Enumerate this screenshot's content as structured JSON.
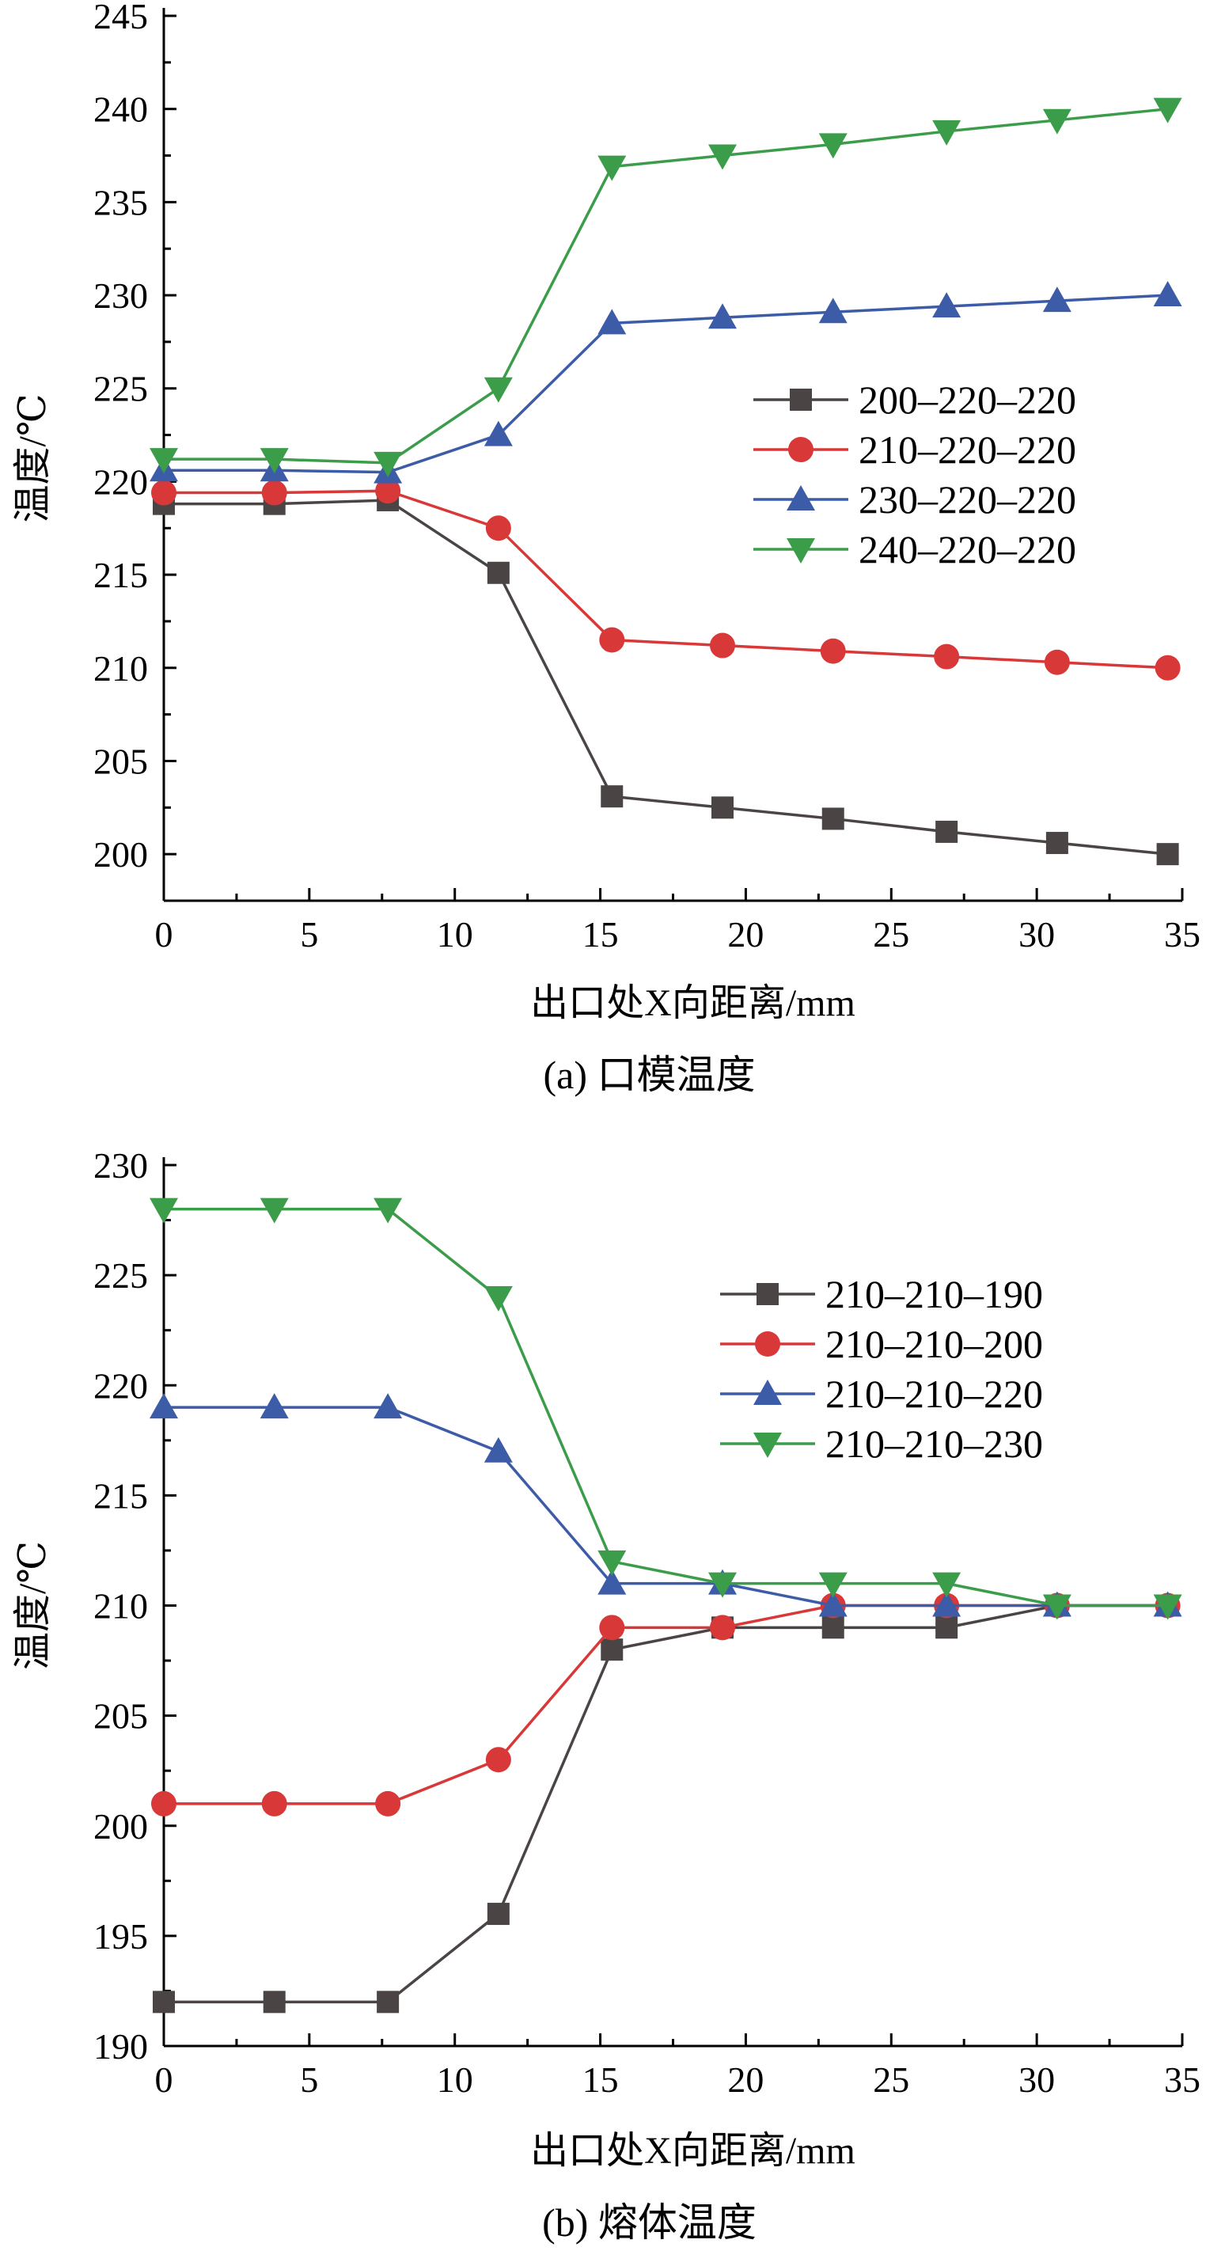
{
  "chart_data": [
    {
      "type": "line",
      "caption": "(a) 口模温度",
      "xlabel": "出口处X向距离/mm",
      "ylabel": "温度/℃",
      "xlim": [
        0,
        35
      ],
      "ylim": [
        197.5,
        245
      ],
      "x_ticks": [
        0,
        5,
        10,
        15,
        20,
        25,
        30,
        35
      ],
      "y_ticks": [
        200,
        205,
        210,
        215,
        220,
        225,
        230,
        235,
        240,
        245
      ],
      "legend_position": "right-center",
      "x": [
        0,
        3.8,
        7.7,
        11.5,
        15.4,
        19.2,
        23.0,
        26.9,
        30.7,
        34.5
      ],
      "series": [
        {
          "name": "200–220–220",
          "marker": "square",
          "color": "#4a4544",
          "values": [
            218.8,
            218.8,
            219.0,
            215.1,
            203.1,
            202.5,
            201.9,
            201.2,
            200.6,
            200.0
          ]
        },
        {
          "name": "210–220–220",
          "marker": "circle",
          "color": "#d93838",
          "values": [
            219.4,
            219.4,
            219.5,
            217.5,
            211.5,
            211.2,
            210.9,
            210.6,
            210.3,
            210.0
          ]
        },
        {
          "name": "230–220–220",
          "marker": "triangle-up",
          "color": "#3d5ca8",
          "values": [
            220.6,
            220.6,
            220.5,
            222.5,
            228.5,
            228.8,
            229.1,
            229.4,
            229.7,
            230.0
          ]
        },
        {
          "name": "240–220–220",
          "marker": "triangle-down",
          "color": "#3b9c4a",
          "values": [
            221.2,
            221.2,
            221.0,
            225.0,
            236.9,
            237.5,
            238.1,
            238.8,
            239.4,
            240.0
          ]
        }
      ]
    },
    {
      "type": "line",
      "caption": "(b) 熔体温度",
      "xlabel": "出口处X向距离/mm",
      "ylabel": "温度/℃",
      "xlim": [
        0,
        35
      ],
      "ylim": [
        190,
        230
      ],
      "x_ticks": [
        0,
        5,
        10,
        15,
        20,
        25,
        30,
        35
      ],
      "y_ticks": [
        190,
        195,
        200,
        205,
        210,
        215,
        220,
        225,
        230
      ],
      "legend_position": "top-right",
      "x": [
        0,
        3.8,
        7.7,
        11.5,
        15.4,
        19.2,
        23.0,
        26.9,
        30.7,
        34.5
      ],
      "series": [
        {
          "name": "210–210–190",
          "marker": "square",
          "color": "#4a4544",
          "values": [
            192,
            192,
            192,
            196,
            208,
            209,
            209,
            209,
            210,
            210
          ]
        },
        {
          "name": "210–210–200",
          "marker": "circle",
          "color": "#d93838",
          "values": [
            201,
            201,
            201,
            203,
            209,
            209,
            210,
            210,
            210,
            210
          ]
        },
        {
          "name": "210–210–220",
          "marker": "triangle-up",
          "color": "#3d5ca8",
          "values": [
            219,
            219,
            219,
            217,
            211,
            211,
            210,
            210,
            210,
            210
          ]
        },
        {
          "name": "210–210–230",
          "marker": "triangle-down",
          "color": "#3b9c4a",
          "values": [
            228,
            228,
            228,
            224,
            212,
            211,
            211,
            211,
            210,
            210
          ]
        }
      ]
    }
  ]
}
